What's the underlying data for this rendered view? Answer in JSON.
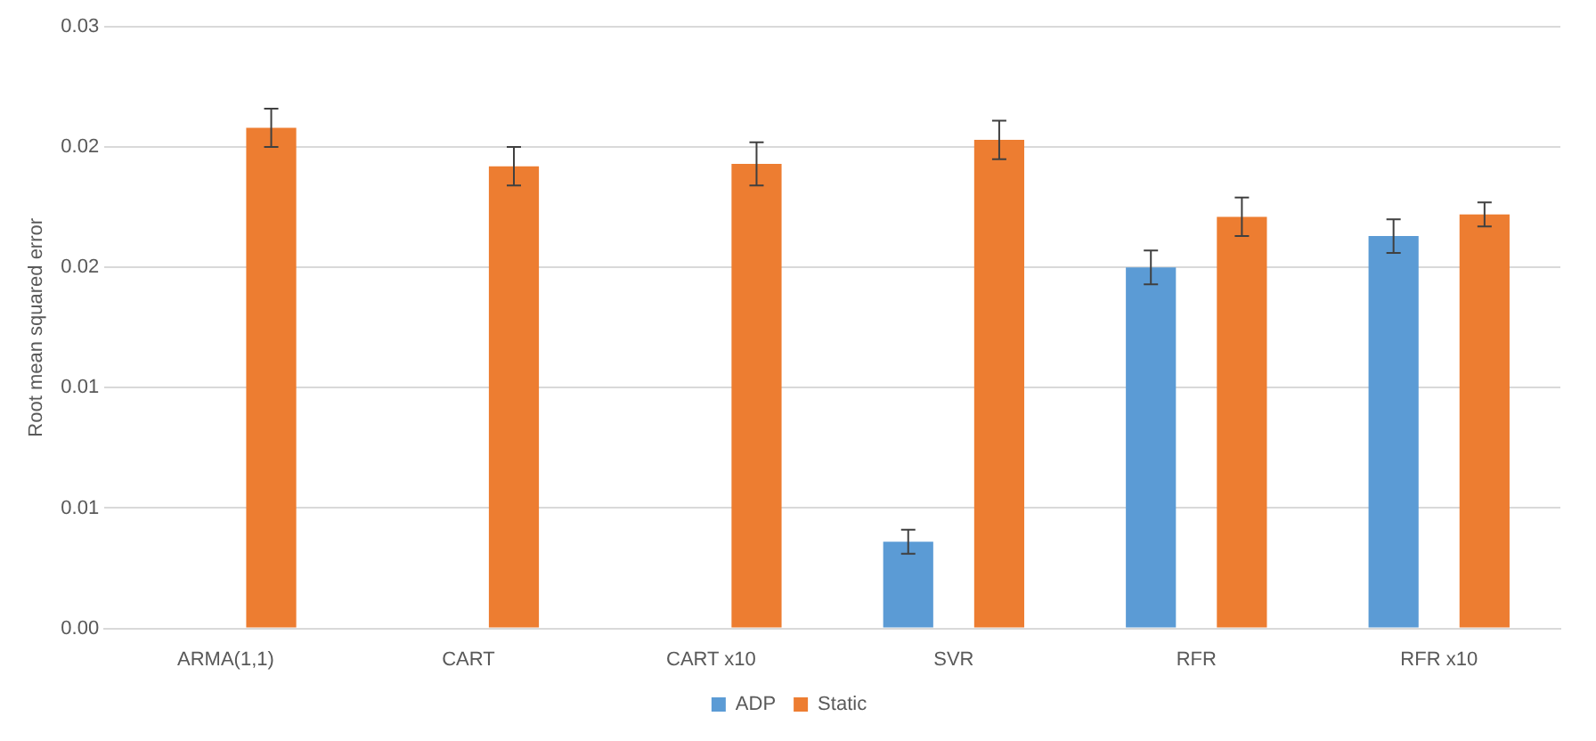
{
  "chart_data": {
    "type": "bar",
    "ylabel": "Root mean squared error",
    "categories": [
      "ARMA(1,1)",
      "CART",
      "CART x10",
      "SVR",
      "RFR",
      "RFR x10"
    ],
    "series": [
      {
        "name": "ADP",
        "color": "#5b9bd5",
        "values": [
          null,
          null,
          null,
          0.0036,
          0.015,
          0.0163
        ],
        "errors": [
          null,
          null,
          null,
          0.0005,
          0.0007,
          0.0007
        ]
      },
      {
        "name": "Static",
        "color": "#ed7d31",
        "values": [
          0.0208,
          0.0192,
          0.0193,
          0.0203,
          0.0171,
          0.0172
        ],
        "errors": [
          0.0008,
          0.0008,
          0.0009,
          0.0008,
          0.0008,
          0.0005
        ]
      }
    ],
    "ylim": [
      0,
      0.025
    ],
    "yticks": [
      {
        "value": 0,
        "label": "0.00"
      },
      {
        "value": 0.005,
        "label": "0.01"
      },
      {
        "value": 0.01,
        "label": "0.01"
      },
      {
        "value": 0.015,
        "label": "0.02"
      },
      {
        "value": 0.02,
        "label": "0.02"
      },
      {
        "value": 0.025,
        "label": "0.03"
      }
    ],
    "grid": "y",
    "legend": "bottom"
  }
}
